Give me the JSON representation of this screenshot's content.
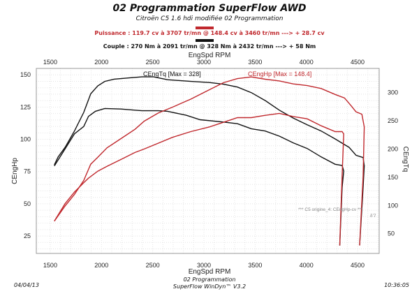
{
  "header": {
    "title": "02 Programmation SuperFlow AWD",
    "subtitle": "Citroën C5 1.6 hdi modifiée 02 Programmation",
    "power_line": "Puissance : 119.7 cv à 3707 tr/mn  @  148.4 cv à 3460 tr/mn    ---> + 28.7 cv",
    "torque_line": "Couple : 270 Nm à 2091 tr/mn  @  328 Nm à 2432 tr/mn    ---> + 58 Nm"
  },
  "footer": {
    "date": "04/04/13",
    "line1": "02 Programmation",
    "line2": "SuperFlow WinDyn™ V3.2",
    "time": "10:36:05"
  },
  "colors": {
    "power": "#c0282d",
    "torque": "#111111"
  },
  "chart_data": {
    "type": "line",
    "grid": true,
    "xlabel": "EngSpd RPM",
    "ylabel_left": "CEngHp",
    "ylabel_right": "CEngTq",
    "xlim": [
      1364,
      4711
    ],
    "ylim_left": [
      11.5,
      155
    ],
    "ylim_right": [
      15,
      343
    ],
    "xticks": [
      1500,
      2000,
      2500,
      3000,
      3500,
      4000,
      4500
    ],
    "yticks_left": [
      25,
      50,
      75,
      100,
      125,
      150
    ],
    "yticks_right": [
      50,
      100,
      150,
      200,
      250,
      300
    ],
    "annotations": [
      {
        "text": "CEngTq [Max = 328]",
        "color": "#111111"
      },
      {
        "text": "CEngHp [Max = 148.4]",
        "color": "#c0282d"
      },
      {
        "text": "*** C5 origine_4: CEngHp-cv ***"
      },
      {
        "text": "δ'7"
      }
    ],
    "series": [
      {
        "axis": "right",
        "color": "#111111",
        "x": [
          1540,
          1577,
          1645,
          1736,
          1827,
          1895,
          1964,
          2032,
          2123,
          2259,
          2395,
          2509,
          2645,
          2872,
          3054,
          3190,
          3327,
          3463,
          3599,
          3736,
          3872,
          4008,
          4145,
          4281,
          4417,
          4485,
          4554,
          4565,
          4550,
          4520
        ],
        "y": [
          172,
          186,
          203,
          232,
          265,
          298,
          312,
          320,
          324,
          326,
          328,
          328,
          323,
          320,
          318,
          315,
          310,
          300,
          286,
          269,
          255,
          243,
          232,
          218,
          203,
          189,
          185,
          170,
          120,
          30
        ]
      },
      {
        "axis": "right",
        "color": "#111111",
        "x": [
          1540,
          1623,
          1736,
          1827,
          1873,
          1941,
          2032,
          2191,
          2327,
          2395,
          2554,
          2645,
          2827,
          2963,
          3190,
          3327,
          3463,
          3599,
          3736,
          3872,
          4008,
          4145,
          4281,
          4349,
          4365,
          4349,
          4326
        ],
        "y": [
          170,
          194,
          227,
          240,
          258,
          267,
          272,
          271,
          269,
          268,
          268,
          267,
          260,
          252,
          248,
          245,
          236,
          232,
          223,
          211,
          201,
          186,
          173,
          171,
          161,
          132,
          29
        ]
      },
      {
        "axis": "left",
        "color": "#c0282d",
        "x": [
          1540,
          1645,
          1736,
          1827,
          1895,
          1964,
          2054,
          2191,
          2327,
          2418,
          2554,
          2691,
          2872,
          3054,
          3190,
          3327,
          3463,
          3599,
          3736,
          3872,
          4008,
          4145,
          4281,
          4372,
          4440,
          4485,
          4542,
          4565,
          4554,
          4520
        ],
        "y": [
          36.5,
          48.3,
          57.3,
          68.1,
          80.7,
          86.1,
          93.4,
          100.6,
          107.8,
          114.1,
          120.4,
          124.9,
          131.2,
          138.5,
          143.9,
          147.1,
          148.4,
          146.6,
          145.3,
          143,
          141.7,
          139.4,
          134.8,
          132.1,
          125.8,
          121.3,
          119.5,
          109.6,
          71.7,
          17.6
        ]
      },
      {
        "axis": "left",
        "color": "#c0282d",
        "x": [
          1540,
          1645,
          1736,
          1827,
          1873,
          1964,
          2054,
          2191,
          2327,
          2418,
          2554,
          2691,
          2872,
          3054,
          3190,
          3327,
          3463,
          3599,
          3736,
          3872,
          4008,
          4145,
          4281,
          4349,
          4365,
          4349,
          4326
        ],
        "y": [
          36.5,
          50.1,
          59.1,
          66.3,
          69.9,
          75.3,
          79,
          84.4,
          89.8,
          92.5,
          97,
          101.5,
          106,
          109.6,
          113.2,
          116.8,
          116.8,
          118.6,
          120.1,
          117.7,
          115.9,
          110.5,
          106,
          106,
          104.2,
          71.7,
          17.6
        ]
      }
    ]
  }
}
